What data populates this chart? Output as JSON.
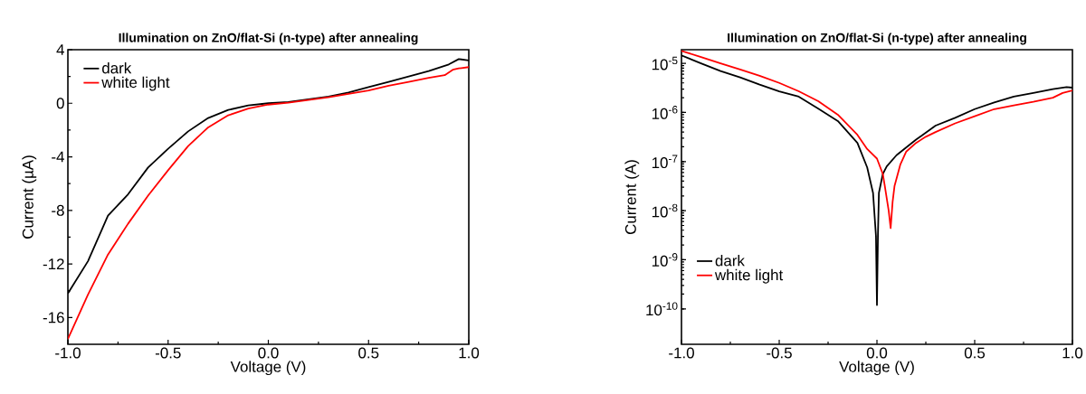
{
  "chart_data": [
    {
      "type": "line",
      "title": "Illumination on ZnO/flat-Si (n-type) after annealing",
      "xlabel": "Voltage (V)",
      "ylabel": "Current (µA)",
      "xlim": [
        -1,
        1
      ],
      "ylim": [
        -18,
        4
      ],
      "xticks": [
        {
          "value": -1,
          "label": "-1.0"
        },
        {
          "value": -0.5,
          "label": "-0.5"
        },
        {
          "value": 0,
          "label": "0.0"
        },
        {
          "value": 0.5,
          "label": "0.5"
        },
        {
          "value": 1,
          "label": "1.0"
        }
      ],
      "yticks": [
        -16,
        -12,
        -8,
        -4,
        0,
        4
      ],
      "legend": "top left",
      "series": [
        {
          "name": "dark",
          "color": "#000000",
          "x": [
            -1,
            -0.9,
            -0.8,
            -0.7,
            -0.6,
            -0.5,
            -0.4,
            -0.3,
            -0.2,
            -0.1,
            0,
            0.1,
            0.2,
            0.3,
            0.4,
            0.5,
            0.6,
            0.7,
            0.8,
            0.9,
            0.95,
            1
          ],
          "values": [
            -14.2,
            -11.8,
            -8.4,
            -6.8,
            -4.8,
            -3.4,
            -2.1,
            -1.1,
            -0.5,
            -0.16,
            0,
            0.1,
            0.3,
            0.5,
            0.8,
            1.2,
            1.6,
            2.0,
            2.4,
            2.9,
            3.3,
            3.2
          ]
        },
        {
          "name": "white light",
          "color": "#ff0000",
          "x": [
            -1,
            -0.9,
            -0.8,
            -0.7,
            -0.6,
            -0.5,
            -0.4,
            -0.3,
            -0.2,
            -0.1,
            0,
            0.1,
            0.2,
            0.3,
            0.4,
            0.5,
            0.6,
            0.7,
            0.8,
            0.88,
            0.92,
            0.95,
            1
          ],
          "values": [
            -17.6,
            -14.3,
            -11.3,
            -9.0,
            -6.9,
            -5.0,
            -3.2,
            -1.8,
            -0.9,
            -0.4,
            -0.1,
            0.05,
            0.25,
            0.45,
            0.7,
            0.95,
            1.3,
            1.6,
            1.9,
            2.1,
            2.5,
            2.6,
            2.7
          ]
        }
      ]
    },
    {
      "type": "line",
      "title": "Illumination on ZnO/flat-Si (n-type) after annealing",
      "xlabel": "Voltage (V)",
      "ylabel": "Current (A)",
      "log": "y",
      "xlim": [
        -1,
        1
      ],
      "ylim": [
        1.9e-11,
        1.9e-05
      ],
      "xticks": [
        {
          "value": -1,
          "label": "-1.0"
        },
        {
          "value": -0.5,
          "label": "-0.5"
        },
        {
          "value": 0,
          "label": "0.0"
        },
        {
          "value": 0.5,
          "label": "0.5"
        },
        {
          "value": 1,
          "label": "1.0"
        }
      ],
      "yticks": [
        {
          "value": 1e-10,
          "label": "10$^{-10}$"
        },
        {
          "value": 1e-09,
          "label": "10$^{-9}$"
        },
        {
          "value": 1e-08,
          "label": "10$^{-8}$"
        },
        {
          "value": 1e-07,
          "label": "10$^{-7}$"
        },
        {
          "value": 1e-06,
          "label": "10$^{-6}$"
        },
        {
          "value": 1e-05,
          "label": "10$^{-5}$"
        }
      ],
      "legend": "bottom left",
      "series": [
        {
          "name": "dark",
          "color": "#000000",
          "x": [
            -1,
            -0.9,
            -0.8,
            -0.7,
            -0.6,
            -0.5,
            -0.4,
            -0.3,
            -0.2,
            -0.1,
            -0.05,
            -0.02,
            -0.005,
            0,
            0.005,
            0.01,
            0.03,
            0.05,
            0.1,
            0.2,
            0.3,
            0.4,
            0.5,
            0.6,
            0.7,
            0.8,
            0.9,
            0.97,
            1
          ],
          "values": [
            1.45e-05,
            1e-05,
            7e-06,
            5.2e-06,
            3.7e-06,
            2.7e-06,
            2.1e-06,
            1.2e-06,
            6.7e-07,
            2.4e-07,
            7.6e-08,
            2.3e-08,
            3e-09,
            1.2e-10,
            3e-09,
            2.3e-08,
            5.6e-08,
            8e-08,
            1.35e-07,
            2.8e-07,
            5.4e-07,
            7.8e-07,
            1.17e-06,
            1.6e-06,
            2.1e-06,
            2.5e-06,
            3e-06,
            3.3e-06,
            3.2e-06
          ]
        },
        {
          "name": "white light",
          "color": "#ff0000",
          "x": [
            -1,
            -0.9,
            -0.8,
            -0.7,
            -0.6,
            -0.5,
            -0.4,
            -0.3,
            -0.2,
            -0.1,
            -0.05,
            0,
            0.03,
            0.04,
            0.06,
            0.07,
            0.08,
            0.09,
            0.12,
            0.15,
            0.2,
            0.25,
            0.3,
            0.4,
            0.5,
            0.6,
            0.7,
            0.8,
            0.9,
            0.95,
            1
          ],
          "values": [
            1.8e-05,
            1.35e-05,
            1e-05,
            7.5e-06,
            5.6e-06,
            4e-06,
            2.7e-06,
            1.7e-06,
            9e-07,
            3.5e-07,
            1.8e-07,
            1.15e-07,
            5.6e-08,
            3.2e-08,
            1e-08,
            4.4e-09,
            1.5e-08,
            3.2e-08,
            8.8e-08,
            1.6e-07,
            2.4e-07,
            3.2e-07,
            4e-07,
            6e-07,
            8.4e-07,
            1.17e-06,
            1.4e-06,
            1.65e-06,
            2e-06,
            2.5e-06,
            2.8e-06
          ]
        }
      ]
    }
  ]
}
